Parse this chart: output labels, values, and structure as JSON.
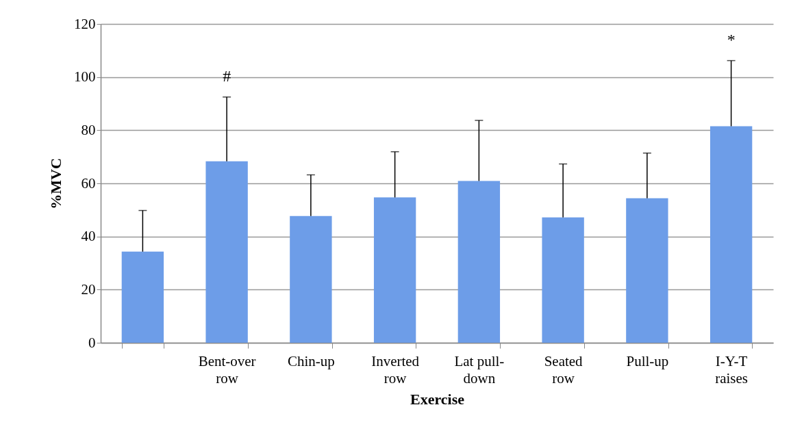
{
  "chart_data": {
    "type": "bar",
    "xlabel": "Exercise",
    "ylabel": "%MVC",
    "categories": [
      null,
      "Bent-over row",
      "Chin-up",
      "Inverted row",
      "Lat pull-down",
      "Seated row",
      "Pull-up",
      "I-Y-T raises"
    ],
    "values": [
      34.3,
      68.3,
      47.7,
      54.7,
      60.9,
      47.2,
      54.4,
      81.5
    ],
    "errors": [
      [
        34.3,
        49.8
      ],
      [
        68.3,
        92.5
      ],
      [
        47.7,
        63.2
      ],
      [
        54.7,
        71.9
      ],
      [
        60.9,
        83.7
      ],
      [
        47.2,
        67.3
      ],
      [
        54.4,
        71.4
      ],
      [
        81.5,
        106.2
      ]
    ],
    "color": "#6d9de8",
    "ylim": [
      0,
      120
    ],
    "yticks": [
      0,
      20,
      40,
      60,
      80,
      100,
      120
    ],
    "grid": "y",
    "annotations": [
      "#",
      "*"
    ]
  }
}
